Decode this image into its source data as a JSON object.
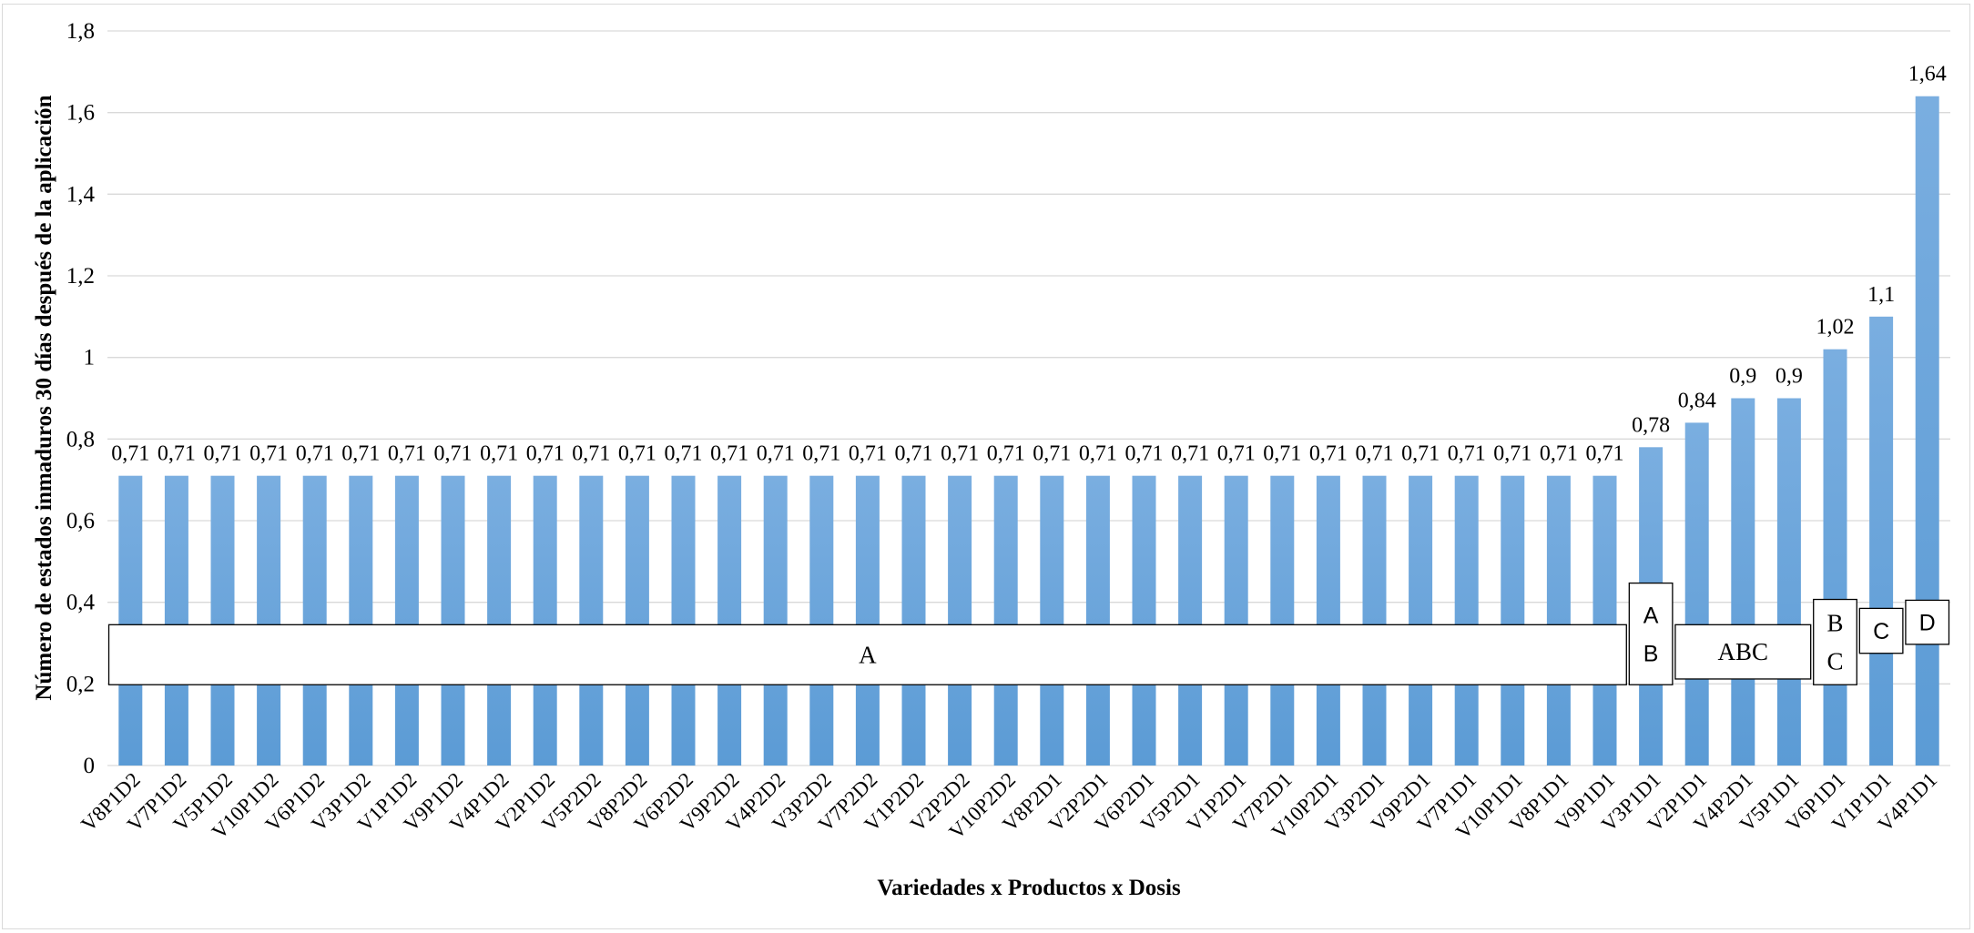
{
  "chart_data": {
    "type": "bar",
    "title": "",
    "xlabel": "Variedades x Productos x Dosis",
    "ylabel": "Número de estados inmaduros 30 días después de la aplicación",
    "ylim": [
      0,
      1.8
    ],
    "yticks": [
      "0",
      "0,2",
      "0,4",
      "0,6",
      "0,8",
      "1",
      "1,2",
      "1,4",
      "1,6",
      "1,8"
    ],
    "grid": true,
    "legend": "none",
    "bar_color": "#5b9bd5",
    "categories": [
      "V8P1D2",
      "V7P1D2",
      "V5P1D2",
      "V10P1D2",
      "V6P1D2",
      "V3P1D2",
      "V1P1D2",
      "V9P1D2",
      "V4P1D2",
      "V2P1D2",
      "V5P2D2",
      "V8P2D2",
      "V6P2D2",
      "V9P2D2",
      "V4P2D2",
      "V3P2D2",
      "V7P2D2",
      "V1P2D2",
      "V2P2D2",
      "V10P2D2",
      "V8P2D1",
      "V2P2D1",
      "V6P2D1",
      "V5P2D1",
      "V1P2D1",
      "V7P2D1",
      "V10P2D1",
      "V3P2D1",
      "V9P2D1",
      "V7P1D1",
      "V10P1D1",
      "V8P1D1",
      "V9P1D1",
      "V3P1D1",
      "V2P1D1",
      "V4P2D1",
      "V5P1D1",
      "V6P1D1",
      "V1P1D1",
      "V4P1D1"
    ],
    "values": [
      0.71,
      0.71,
      0.71,
      0.71,
      0.71,
      0.71,
      0.71,
      0.71,
      0.71,
      0.71,
      0.71,
      0.71,
      0.71,
      0.71,
      0.71,
      0.71,
      0.71,
      0.71,
      0.71,
      0.71,
      0.71,
      0.71,
      0.71,
      0.71,
      0.71,
      0.71,
      0.71,
      0.71,
      0.71,
      0.71,
      0.71,
      0.71,
      0.71,
      0.78,
      0.84,
      0.9,
      0.9,
      1.02,
      1.1,
      1.64
    ],
    "data_labels": [
      "0,71",
      "0,71",
      "0,71",
      "0,71",
      "0,71",
      "0,71",
      "0,71",
      "0,71",
      "0,71",
      "0,71",
      "0,71",
      "0,71",
      "0,71",
      "0,71",
      "0,71",
      "0,71",
      "0,71",
      "0,71",
      "0,71",
      "0,71",
      "0,71",
      "0,71",
      "0,71",
      "0,71",
      "0,71",
      "0,71",
      "0,71",
      "0,71",
      "0,71",
      "0,71",
      "0,71",
      "0,71",
      "0,71",
      "0,78",
      "0,84",
      "0,9",
      "0,9",
      "1,02",
      "1,1",
      "1,64"
    ],
    "annotations": [
      {
        "lines": [
          "A"
        ],
        "from": 0,
        "to": 32,
        "y_top": 0.345,
        "y_bottom": 0.198,
        "font": "serif"
      },
      {
        "lines": [
          "A",
          "B"
        ],
        "from": 33,
        "to": 33,
        "y_top": 0.447,
        "y_bottom": 0.198,
        "font": "sans"
      },
      {
        "lines": [
          "ABC"
        ],
        "from": 34,
        "to": 36,
        "y_top": 0.345,
        "y_bottom": 0.212,
        "font": "serif"
      },
      {
        "lines": [
          "B",
          "C"
        ],
        "from": 37,
        "to": 37,
        "y_top": 0.407,
        "y_bottom": 0.198,
        "font": "serif"
      },
      {
        "lines": [
          "C"
        ],
        "from": 38,
        "to": 38,
        "y_top": 0.385,
        "y_bottom": 0.275,
        "font": "sans"
      },
      {
        "lines": [
          "D"
        ],
        "from": 39,
        "to": 39,
        "y_top": 0.405,
        "y_bottom": 0.297,
        "font": "sans"
      }
    ]
  }
}
